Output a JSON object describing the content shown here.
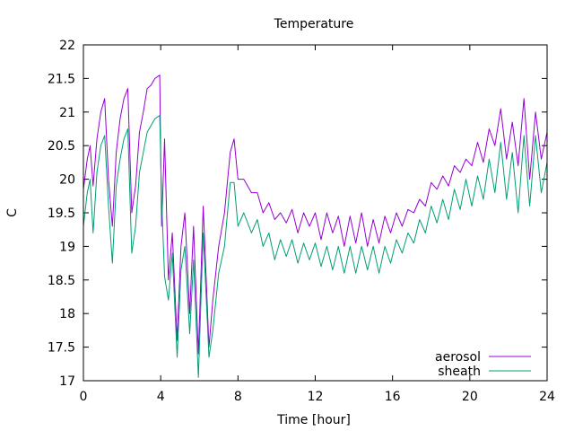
{
  "chart_data": {
    "type": "line",
    "title": "Temperature",
    "xlabel": "Time [hour]",
    "ylabel": "C",
    "xlim": [
      0,
      24
    ],
    "ylim": [
      17,
      22
    ],
    "xticks": [
      "0",
      "4",
      "8",
      "12",
      "16",
      "20",
      "24"
    ],
    "yticks": [
      "17",
      "17.5",
      "18",
      "18.5",
      "19",
      "19.5",
      "20",
      "20.5",
      "21",
      "21.5",
      "22"
    ],
    "grid": false,
    "legend_position": "bottom-right",
    "series": [
      {
        "name": "aerosol",
        "color": "#9400d3",
        "x": [
          0,
          0.2,
          0.35,
          0.5,
          0.7,
          0.9,
          1.1,
          1.3,
          1.5,
          1.7,
          1.9,
          2.1,
          2.3,
          2.5,
          2.7,
          2.9,
          3.1,
          3.3,
          3.5,
          3.7,
          3.95,
          4.05,
          4.2,
          4.4,
          4.6,
          4.85,
          5.05,
          5.25,
          5.5,
          5.7,
          5.95,
          6.2,
          6.5,
          6.7,
          7.0,
          7.3,
          7.6,
          7.8,
          8.0,
          8.3,
          8.7,
          9.0,
          9.3,
          9.6,
          9.9,
          10.2,
          10.5,
          10.8,
          11.1,
          11.4,
          11.7,
          12.0,
          12.3,
          12.6,
          12.9,
          13.2,
          13.5,
          13.8,
          14.1,
          14.4,
          14.7,
          15.0,
          15.3,
          15.6,
          15.9,
          16.2,
          16.5,
          16.8,
          17.1,
          17.4,
          17.7,
          18.0,
          18.3,
          18.6,
          18.9,
          19.2,
          19.5,
          19.8,
          20.1,
          20.4,
          20.7,
          21.0,
          21.3,
          21.6,
          21.9,
          22.2,
          22.5,
          22.8,
          23.1,
          23.4,
          23.7,
          24.0
        ],
        "values": [
          19.85,
          20.3,
          20.5,
          19.9,
          20.6,
          21.0,
          21.2,
          20.0,
          19.3,
          20.4,
          20.9,
          21.2,
          21.35,
          19.5,
          19.9,
          20.7,
          21.0,
          21.35,
          21.4,
          21.5,
          21.55,
          19.3,
          20.6,
          18.5,
          19.2,
          17.6,
          19.0,
          19.5,
          18.0,
          19.3,
          17.4,
          19.6,
          17.5,
          18.2,
          19.0,
          19.5,
          20.4,
          20.6,
          20.0,
          20.0,
          19.8,
          19.8,
          19.5,
          19.65,
          19.4,
          19.5,
          19.35,
          19.55,
          19.2,
          19.5,
          19.3,
          19.5,
          19.1,
          19.5,
          19.2,
          19.45,
          19.0,
          19.45,
          19.05,
          19.5,
          19.0,
          19.4,
          19.05,
          19.45,
          19.2,
          19.5,
          19.3,
          19.55,
          19.5,
          19.7,
          19.6,
          19.95,
          19.85,
          20.05,
          19.9,
          20.2,
          20.1,
          20.3,
          20.2,
          20.55,
          20.25,
          20.75,
          20.5,
          21.05,
          20.3,
          20.85,
          20.2,
          21.2,
          20.0,
          21.0,
          20.3,
          20.7
        ]
      },
      {
        "name": "sheath",
        "color": "#009e73",
        "x": [
          0,
          0.2,
          0.35,
          0.5,
          0.7,
          0.9,
          1.1,
          1.3,
          1.5,
          1.7,
          1.9,
          2.1,
          2.3,
          2.5,
          2.7,
          2.9,
          3.1,
          3.3,
          3.5,
          3.7,
          3.95,
          4.05,
          4.2,
          4.4,
          4.6,
          4.85,
          5.05,
          5.25,
          5.5,
          5.7,
          5.95,
          6.2,
          6.5,
          6.7,
          7.0,
          7.3,
          7.6,
          7.8,
          8.0,
          8.3,
          8.7,
          9.0,
          9.3,
          9.6,
          9.9,
          10.2,
          10.5,
          10.8,
          11.1,
          11.4,
          11.7,
          12.0,
          12.3,
          12.6,
          12.9,
          13.2,
          13.5,
          13.8,
          14.1,
          14.4,
          14.7,
          15.0,
          15.3,
          15.6,
          15.9,
          16.2,
          16.5,
          16.8,
          17.1,
          17.4,
          17.7,
          18.0,
          18.3,
          18.6,
          18.9,
          19.2,
          19.5,
          19.8,
          20.1,
          20.4,
          20.7,
          21.0,
          21.3,
          21.6,
          21.9,
          22.2,
          22.5,
          22.8,
          23.1,
          23.4,
          23.7,
          24.0
        ],
        "values": [
          19.3,
          19.8,
          20.0,
          19.2,
          20.1,
          20.5,
          20.65,
          19.6,
          18.75,
          19.9,
          20.3,
          20.6,
          20.75,
          18.9,
          19.3,
          20.1,
          20.4,
          20.7,
          20.8,
          20.9,
          20.95,
          19.7,
          18.55,
          18.2,
          18.9,
          17.35,
          18.65,
          19.0,
          17.7,
          18.8,
          17.05,
          19.2,
          17.35,
          17.75,
          18.6,
          19.0,
          19.95,
          19.95,
          19.3,
          19.5,
          19.2,
          19.4,
          19.0,
          19.2,
          18.8,
          19.1,
          18.85,
          19.1,
          18.75,
          19.05,
          18.8,
          19.05,
          18.7,
          19.0,
          18.65,
          19.0,
          18.6,
          19.0,
          18.6,
          19.0,
          18.65,
          19.0,
          18.6,
          19.0,
          18.75,
          19.1,
          18.9,
          19.2,
          19.05,
          19.4,
          19.2,
          19.6,
          19.35,
          19.7,
          19.4,
          19.85,
          19.55,
          20.0,
          19.6,
          20.05,
          19.7,
          20.3,
          19.8,
          20.55,
          19.7,
          20.4,
          19.5,
          20.65,
          19.6,
          20.65,
          19.8,
          20.25
        ]
      }
    ]
  }
}
